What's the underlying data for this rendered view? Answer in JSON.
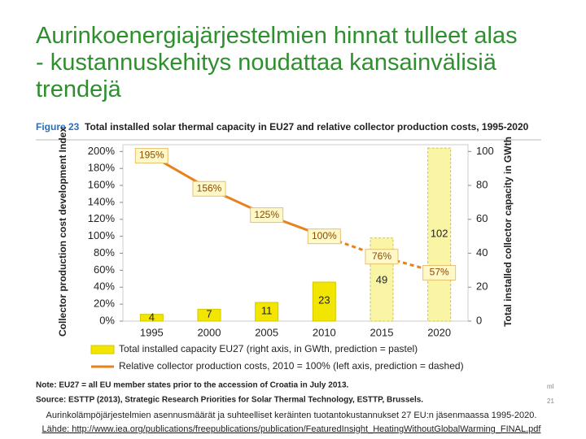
{
  "title": "Aurinkoenergiajärjestelmien hinnat tulleet alas - kustannuskehitys noudattaa kansainvälisiä trendejä",
  "chart_data": {
    "type": "combo",
    "figure_number": "Figure 23",
    "title": "Total installed solar thermal capacity in EU27 and relative collector production costs, 1995-2020",
    "y_label": "Collector production cost development Index",
    "y2_label": "Total installed collector capacity in GWth",
    "categories": [
      "1995",
      "2000",
      "2005",
      "2010",
      "2015",
      "2020"
    ],
    "ylim": [
      0,
      208
    ],
    "yticks": [
      {
        "value": 0,
        "label": "0%"
      },
      {
        "value": 20,
        "label": "20%"
      },
      {
        "value": 40,
        "label": "40%"
      },
      {
        "value": 60,
        "label": "60%"
      },
      {
        "value": 80,
        "label": "80%"
      },
      {
        "value": 100,
        "label": "100%"
      },
      {
        "value": 120,
        "label": "120%"
      },
      {
        "value": 140,
        "label": "140%"
      },
      {
        "value": 160,
        "label": "160%"
      },
      {
        "value": 180,
        "label": "180%"
      },
      {
        "value": 200,
        "label": "200%"
      }
    ],
    "y2lim": [
      0,
      104
    ],
    "y2ticks": [
      0,
      20,
      40,
      60,
      80,
      100
    ],
    "series": [
      {
        "name": "Total installed capacity EU27 (right axis, in GWth, prediction = pastel)",
        "type": "bar",
        "axis": "y2",
        "color": "#f2e600",
        "colors": [
          "#f2e600",
          "#f2e600",
          "#f2e600",
          "#f2e600",
          "#faf5a5",
          "#faf5a5"
        ],
        "values": [
          4,
          7,
          11,
          23,
          49,
          102
        ]
      },
      {
        "name": "Relative collector production costs, 2010 = 100% (left axis, prediction = dashed)",
        "type": "line",
        "color": "#e8821e",
        "styles": [
          "solid",
          "solid",
          "solid",
          "solid",
          "dashed",
          "dashed"
        ],
        "values": [
          195,
          156,
          125,
          100,
          76,
          57
        ],
        "value_labels": [
          "195%",
          "156%",
          "125%",
          "100%",
          "76%",
          "57%"
        ]
      }
    ],
    "notes": [
      "Note: EU27 = all EU member states prior to the accession of Croatia in July 2013.",
      "Source: ESTTP (2013), Strategic Research Priorities for Solar Thermal Technology, ESTTP, Brussels."
    ]
  },
  "margin_notes": [
    "ml",
    "21"
  ],
  "caption": "Aurinkolämpöjärjestelmien asennusmäärät ja suhteelliset keräinten tuotantokustannukset 27 EU:n jäsenmaassa 1995-2020.",
  "source": "Lähde: http://www.iea.org/publications/freepublications/publication/FeaturedInsight_HeatingWithoutGlobalWarming_FINAL.pdf"
}
